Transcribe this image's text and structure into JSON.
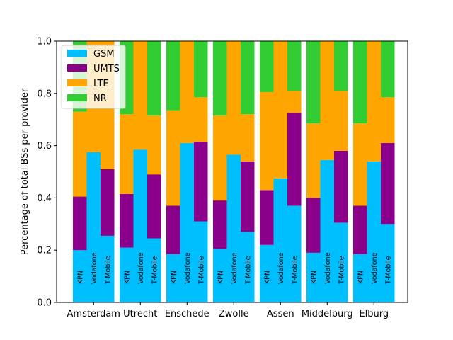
{
  "chart_data": {
    "type": "bar",
    "stacked": true,
    "ylabel": "Percentage of total BSs per provider",
    "xlabel": "",
    "ylim": [
      0,
      1.0
    ],
    "yticks": [
      "0.0",
      "0.2",
      "0.4",
      "0.6",
      "0.8",
      "1.0"
    ],
    "categories": [
      "Amsterdam",
      "Utrecht",
      "Enschede",
      "Zwolle",
      "Assen",
      "Middelburg",
      "Elburg"
    ],
    "providers": [
      "KPN",
      "Vodafone",
      "T-Mobile"
    ],
    "legend_position": "top-left",
    "series": [
      {
        "name": "GSM",
        "color": "#00BFFF",
        "values": [
          [
            0.2,
            0.575,
            0.255
          ],
          [
            0.21,
            0.585,
            0.245
          ],
          [
            0.185,
            0.61,
            0.31
          ],
          [
            0.205,
            0.565,
            0.27
          ],
          [
            0.22,
            0.475,
            0.37
          ],
          [
            0.19,
            0.545,
            0.305
          ],
          [
            0.185,
            0.54,
            0.3
          ]
        ]
      },
      {
        "name": "UMTS",
        "color": "#8B008B",
        "values": [
          [
            0.205,
            0.0,
            0.255
          ],
          [
            0.205,
            0.0,
            0.245
          ],
          [
            0.185,
            0.0,
            0.305
          ],
          [
            0.185,
            0.0,
            0.27
          ],
          [
            0.21,
            0.0,
            0.355
          ],
          [
            0.21,
            0.0,
            0.275
          ],
          [
            0.185,
            0.0,
            0.31
          ]
        ]
      },
      {
        "name": "LTE",
        "color": "#FFA500",
        "values": [
          [
            0.325,
            0.425,
            0.49
          ],
          [
            0.305,
            0.415,
            0.225
          ],
          [
            0.365,
            0.39,
            0.17
          ],
          [
            0.325,
            0.435,
            0.18
          ],
          [
            0.375,
            0.525,
            0.085
          ],
          [
            0.285,
            0.455,
            0.23
          ],
          [
            0.315,
            0.46,
            0.175
          ]
        ]
      },
      {
        "name": "NR",
        "color": "#32CD32",
        "values": [
          [
            0.27,
            0.0,
            0.0
          ],
          [
            0.28,
            0.0,
            0.285
          ],
          [
            0.265,
            0.0,
            0.215
          ],
          [
            0.285,
            0.0,
            0.28
          ],
          [
            0.195,
            0.0,
            0.19
          ],
          [
            0.315,
            0.0,
            0.19
          ],
          [
            0.315,
            0.0,
            0.215
          ]
        ]
      }
    ]
  }
}
